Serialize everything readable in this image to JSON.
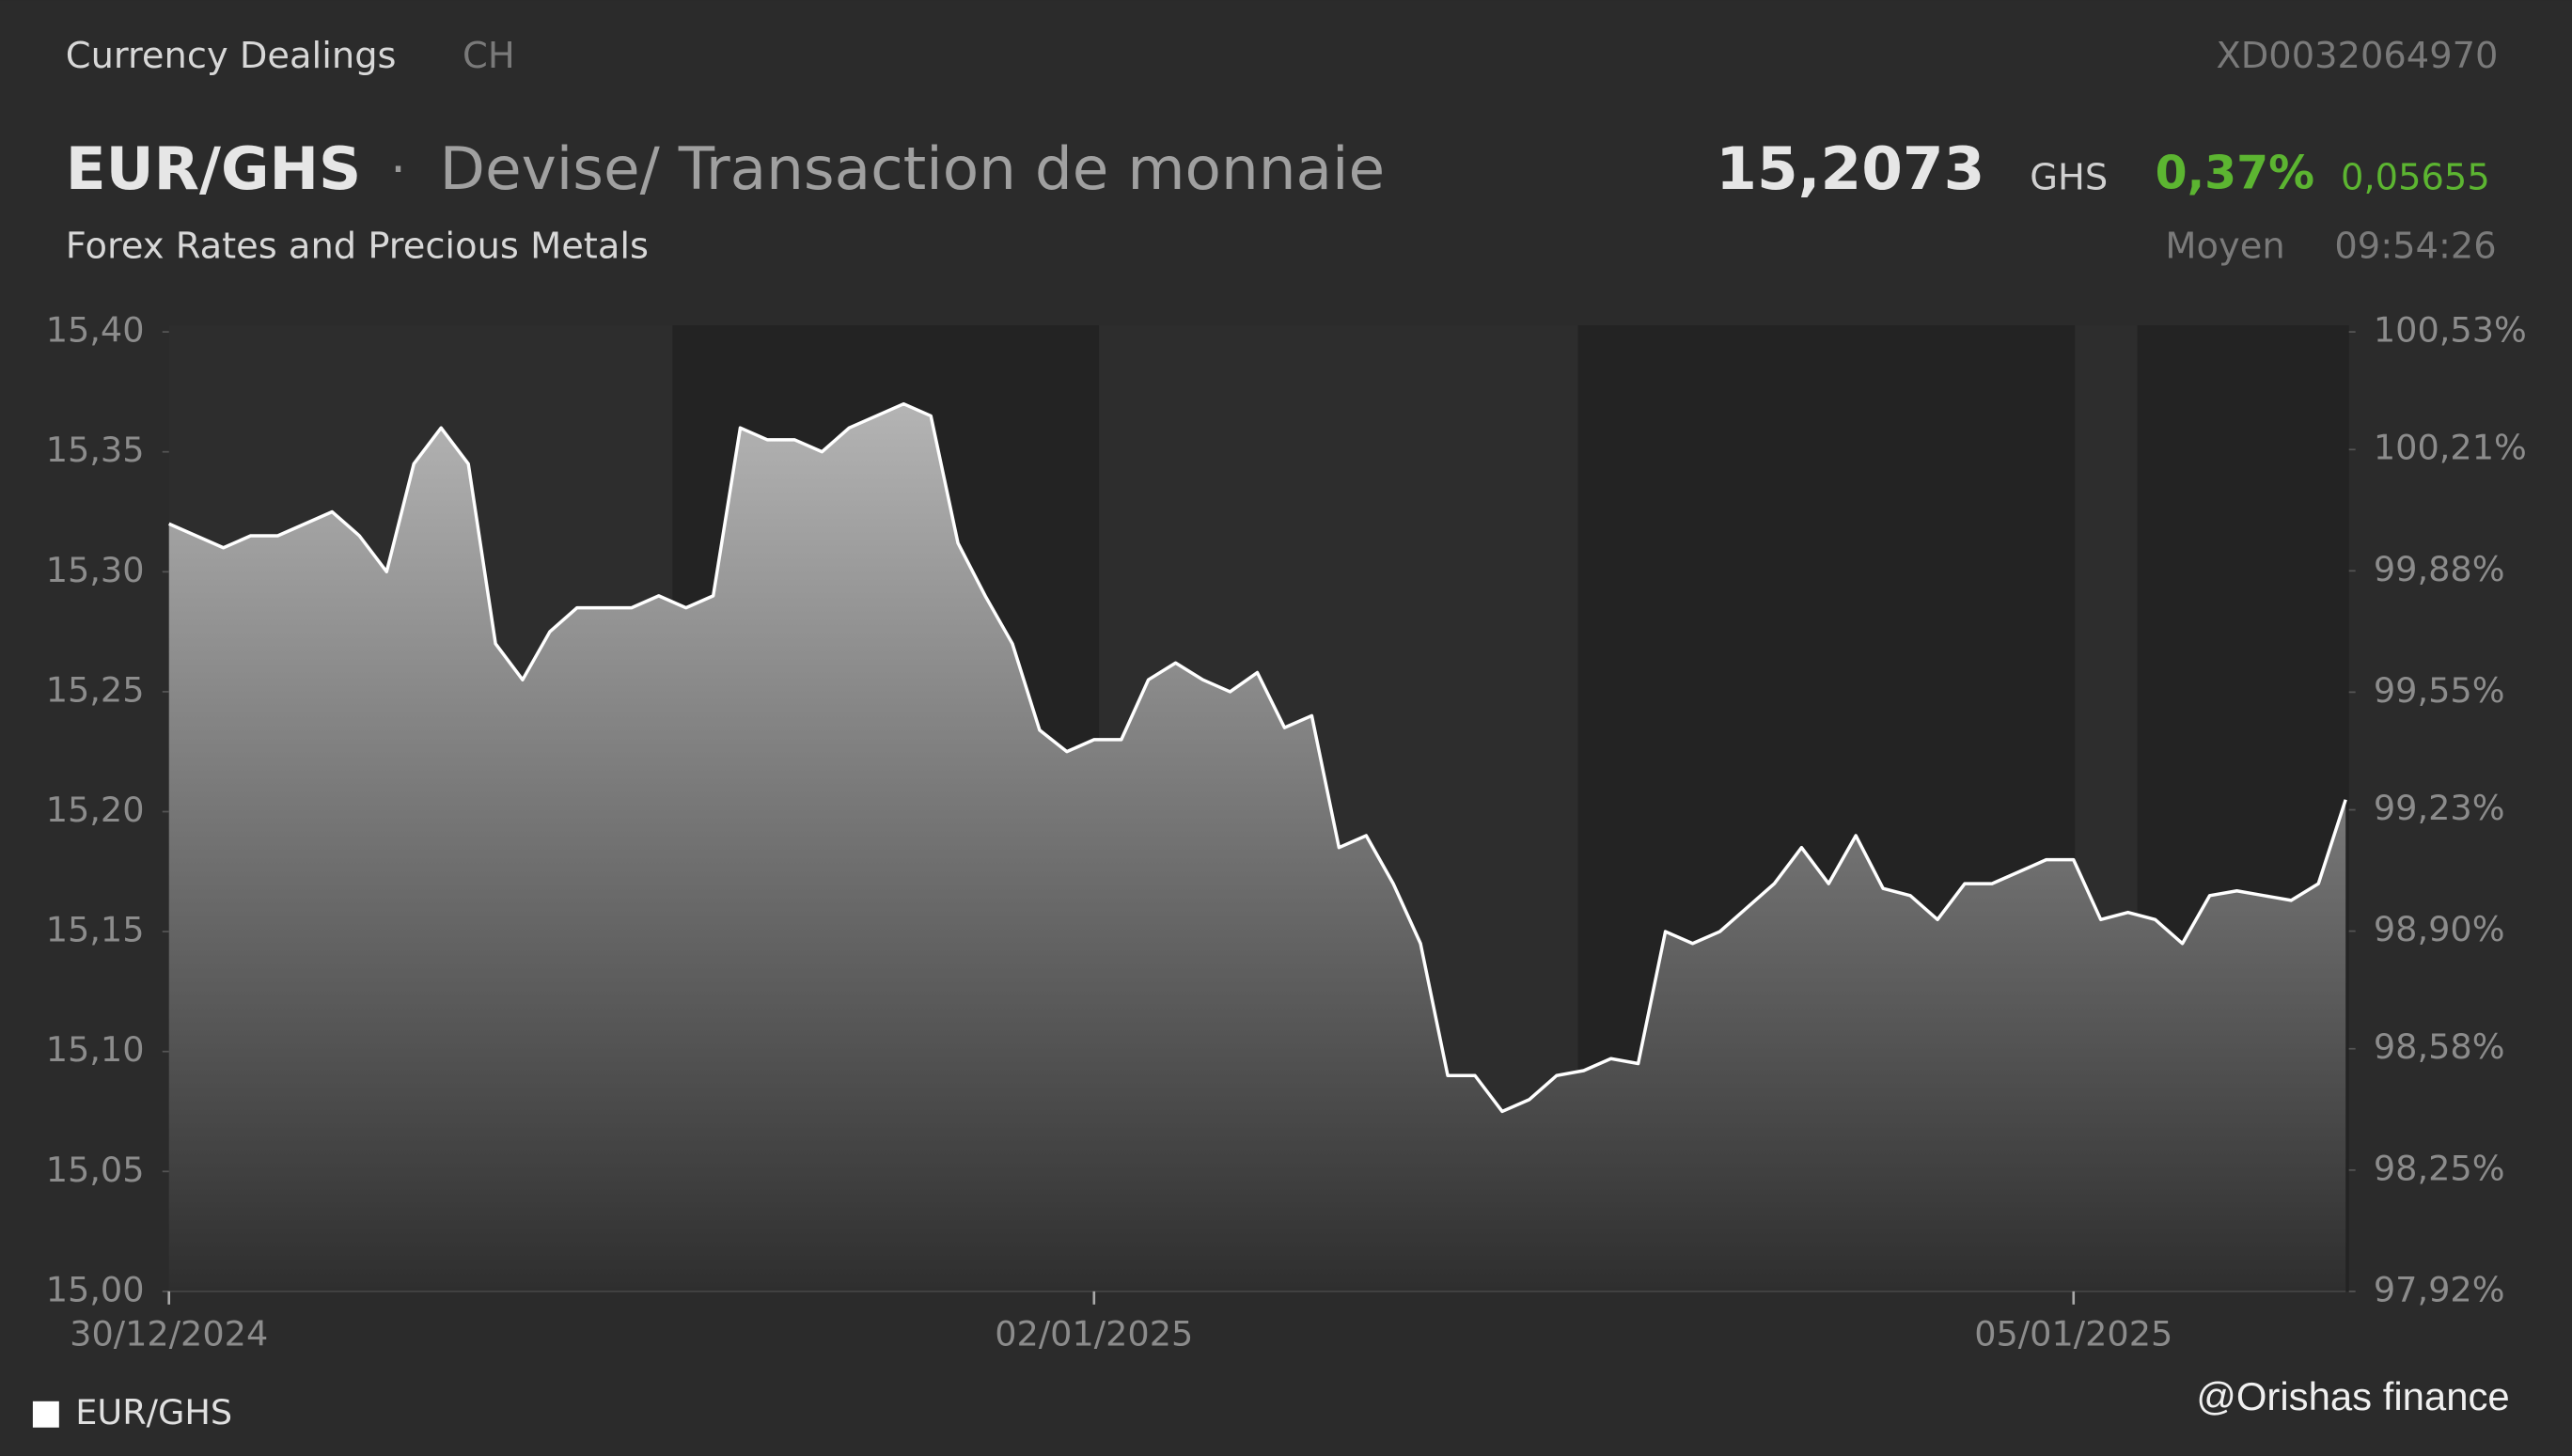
{
  "header": {
    "source": "Currency Dealings",
    "country": "CH",
    "code": "XD0032064970",
    "separator": "·",
    "subtitle": "Devise/ Transaction de monnaie",
    "category": "Forex Rates and Precious Metals",
    "price": "15,2073",
    "currency": "GHS",
    "change_pct": "0,37%",
    "change_abs": "0,05655",
    "price_type": "Moyen",
    "time": "09:54:26",
    "watermark": "@Orishas finance"
  },
  "chart_data": {
    "type": "area",
    "title": "EUR/GHS",
    "categories": [
      "30/12/2024",
      null,
      null,
      null,
      null,
      null,
      null,
      null,
      null,
      null,
      null,
      null,
      null,
      null,
      null,
      null,
      null,
      null,
      null,
      null,
      null,
      null,
      null,
      null,
      null,
      null,
      null,
      null,
      null,
      null,
      null,
      null,
      null,
      null,
      "02/01/2025",
      null,
      null,
      null,
      null,
      null,
      null,
      null,
      null,
      null,
      null,
      null,
      null,
      null,
      null,
      null,
      null,
      null,
      null,
      null,
      null,
      null,
      null,
      null,
      null,
      null,
      null,
      null,
      null,
      null,
      null,
      null,
      null,
      null,
      null,
      null,
      "05/01/2025",
      null,
      null,
      null,
      null,
      null,
      null,
      null,
      null,
      null,
      null
    ],
    "series": [
      {
        "name": "EUR/GHS",
        "color": "#ffffff",
        "values": [
          15.32,
          15.315,
          15.31,
          15.315,
          15.315,
          15.32,
          15.325,
          15.315,
          15.3,
          15.345,
          15.36,
          15.345,
          15.27,
          15.255,
          15.275,
          15.285,
          15.285,
          15.285,
          15.29,
          15.285,
          15.29,
          15.36,
          15.355,
          15.355,
          15.35,
          15.36,
          15.365,
          15.37,
          15.365,
          15.312,
          15.29,
          15.27,
          15.234,
          15.225,
          15.23,
          15.23,
          15.255,
          15.262,
          15.255,
          15.25,
          15.258,
          15.235,
          15.24,
          15.185,
          15.19,
          15.17,
          15.145,
          15.09,
          15.09,
          15.075,
          15.08,
          15.09,
          15.092,
          15.097,
          15.095,
          15.15,
          15.145,
          15.15,
          15.16,
          15.17,
          15.185,
          15.17,
          15.19,
          15.168,
          15.165,
          15.155,
          15.17,
          15.17,
          15.175,
          15.18,
          15.18,
          15.155,
          15.158,
          15.155,
          15.145,
          15.165,
          15.167,
          15.165,
          15.163,
          15.17,
          15.205
        ]
      }
    ],
    "ylim": [
      15.0,
      15.4
    ],
    "yticks": [
      {
        "value": 15.0,
        "label": "15,00"
      },
      {
        "value": 15.05,
        "label": "15,05"
      },
      {
        "value": 15.1,
        "label": "15,10"
      },
      {
        "value": 15.15,
        "label": "15,15"
      },
      {
        "value": 15.2,
        "label": "15,20"
      },
      {
        "value": 15.25,
        "label": "15,25"
      },
      {
        "value": 15.3,
        "label": "15,30"
      },
      {
        "value": 15.35,
        "label": "15,35"
      },
      {
        "value": 15.4,
        "label": "15,40"
      }
    ],
    "y2lim": [
      97.92,
      100.53
    ],
    "y2ticks": [
      {
        "value": 97.92,
        "label": "97,92%"
      },
      {
        "value": 98.25,
        "label": "98,25%"
      },
      {
        "value": 98.58,
        "label": "98,58%"
      },
      {
        "value": 98.9,
        "label": "98,90%"
      },
      {
        "value": 99.23,
        "label": "99,23%"
      },
      {
        "value": 99.55,
        "label": "99,55%"
      },
      {
        "value": 99.88,
        "label": "99,88%"
      },
      {
        "value": 100.21,
        "label": "100,21%"
      },
      {
        "value": 100.53,
        "label": "100,53%"
      }
    ],
    "legend": "bottom-left"
  }
}
